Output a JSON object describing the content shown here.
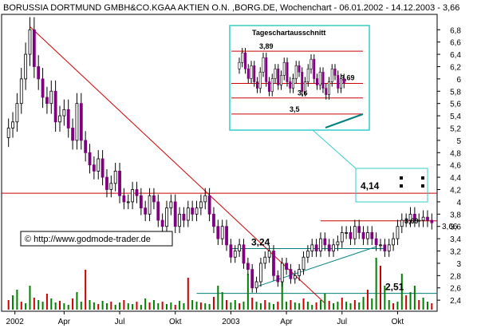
{
  "chart_data": {
    "type": "candlestick",
    "title": "BORUSSIA DORTMUND GMBH&CO.KGAA AKTIEN O.N. ,BORG.DE, Wochenchart - 06.01.2002 - 14.12.2003 - 3,66",
    "copyright": "© http://www.godmode-trader.de",
    "yticks": [
      "6,8",
      "6,6",
      "6,4",
      "6,2",
      "6",
      "5,8",
      "5,6",
      "5,4",
      "5,2",
      "5",
      "4,8",
      "4,6",
      "4,4",
      "4,2",
      "4",
      "3,8",
      "3,6",
      "3,4",
      "3,2",
      "3",
      "2,8",
      "2,6",
      "2,4"
    ],
    "ylim": [
      2.22,
      7.05
    ],
    "xticks": [
      "2002",
      "Apr",
      "Jul",
      "Okt",
      "2003",
      "Apr",
      "Jul",
      "Okt"
    ],
    "current_price_label": "3,66",
    "levels": [
      {
        "label": "4,14",
        "value": 4.14,
        "color": "#cc0000"
      },
      {
        "label": "3,24",
        "value": 3.24,
        "color": "#008080"
      },
      {
        "label": "2,51",
        "value": 2.51,
        "color": "#008080"
      },
      {
        "label": "3,69",
        "value": 3.69,
        "color": "#cc0000"
      }
    ],
    "inset": {
      "title": "Tageschartausschnitt",
      "levels": [
        {
          "label": "3,89",
          "value": 3.89
        },
        {
          "label": "3,69",
          "value": 3.69
        },
        {
          "label": "3,6",
          "value": 3.6
        },
        {
          "label": "3,5",
          "value": 3.5
        }
      ]
    },
    "closes": [
      5.2,
      5.3,
      5.6,
      6.0,
      6.4,
      6.8,
      6.2,
      6.0,
      5.7,
      5.6,
      5.8,
      5.3,
      5.4,
      5.5,
      5.2,
      5.0,
      5.6,
      5.0,
      4.8,
      4.6,
      4.5,
      4.7,
      4.4,
      4.2,
      4.3,
      4.5,
      4.1,
      4.0,
      4.0,
      4.2,
      4.1,
      3.9,
      3.8,
      4.1,
      4.0,
      3.7,
      3.6,
      3.9,
      4.0,
      3.6,
      3.8,
      3.7,
      3.9,
      3.8,
      3.9,
      4.0,
      4.1,
      3.8,
      3.6,
      3.4,
      3.6,
      3.3,
      3.1,
      3.2,
      3.3,
      3.0,
      2.9,
      2.6,
      2.7,
      3.0,
      3.1,
      3.2,
      2.8,
      2.7,
      3.0,
      2.9,
      2.75,
      2.8,
      2.9,
      3.1,
      3.2,
      3.3,
      3.2,
      3.4,
      3.3,
      3.2,
      3.3,
      3.35,
      3.5,
      3.5,
      3.4,
      3.6,
      3.5,
      3.4,
      3.5,
      3.4,
      3.3,
      3.3,
      3.2,
      3.3,
      3.4,
      3.6,
      3.7,
      3.7,
      3.8,
      3.7,
      3.7,
      3.75,
      3.7,
      3.66
    ],
    "volumes": [
      12,
      18,
      25,
      10,
      8,
      30,
      15,
      12,
      10,
      20,
      14,
      9,
      11,
      8,
      6,
      14,
      22,
      10,
      50,
      12,
      9,
      7,
      11,
      8,
      10,
      6,
      9,
      12,
      8,
      7,
      10,
      6,
      14,
      9,
      12,
      8,
      10,
      7,
      9,
      6,
      11,
      8,
      40,
      12,
      10,
      9,
      8,
      7,
      16,
      30,
      22,
      12,
      9,
      12,
      8,
      10,
      45,
      15,
      10,
      8,
      12,
      9,
      7,
      10,
      35,
      10,
      12,
      9,
      8,
      14,
      10,
      6,
      9,
      12,
      20,
      11,
      8,
      10,
      15,
      10,
      8,
      12,
      9,
      16,
      25,
      14,
      65,
      55,
      30,
      12,
      8,
      10,
      45,
      18,
      22,
      30,
      12,
      15,
      10,
      8
    ]
  }
}
